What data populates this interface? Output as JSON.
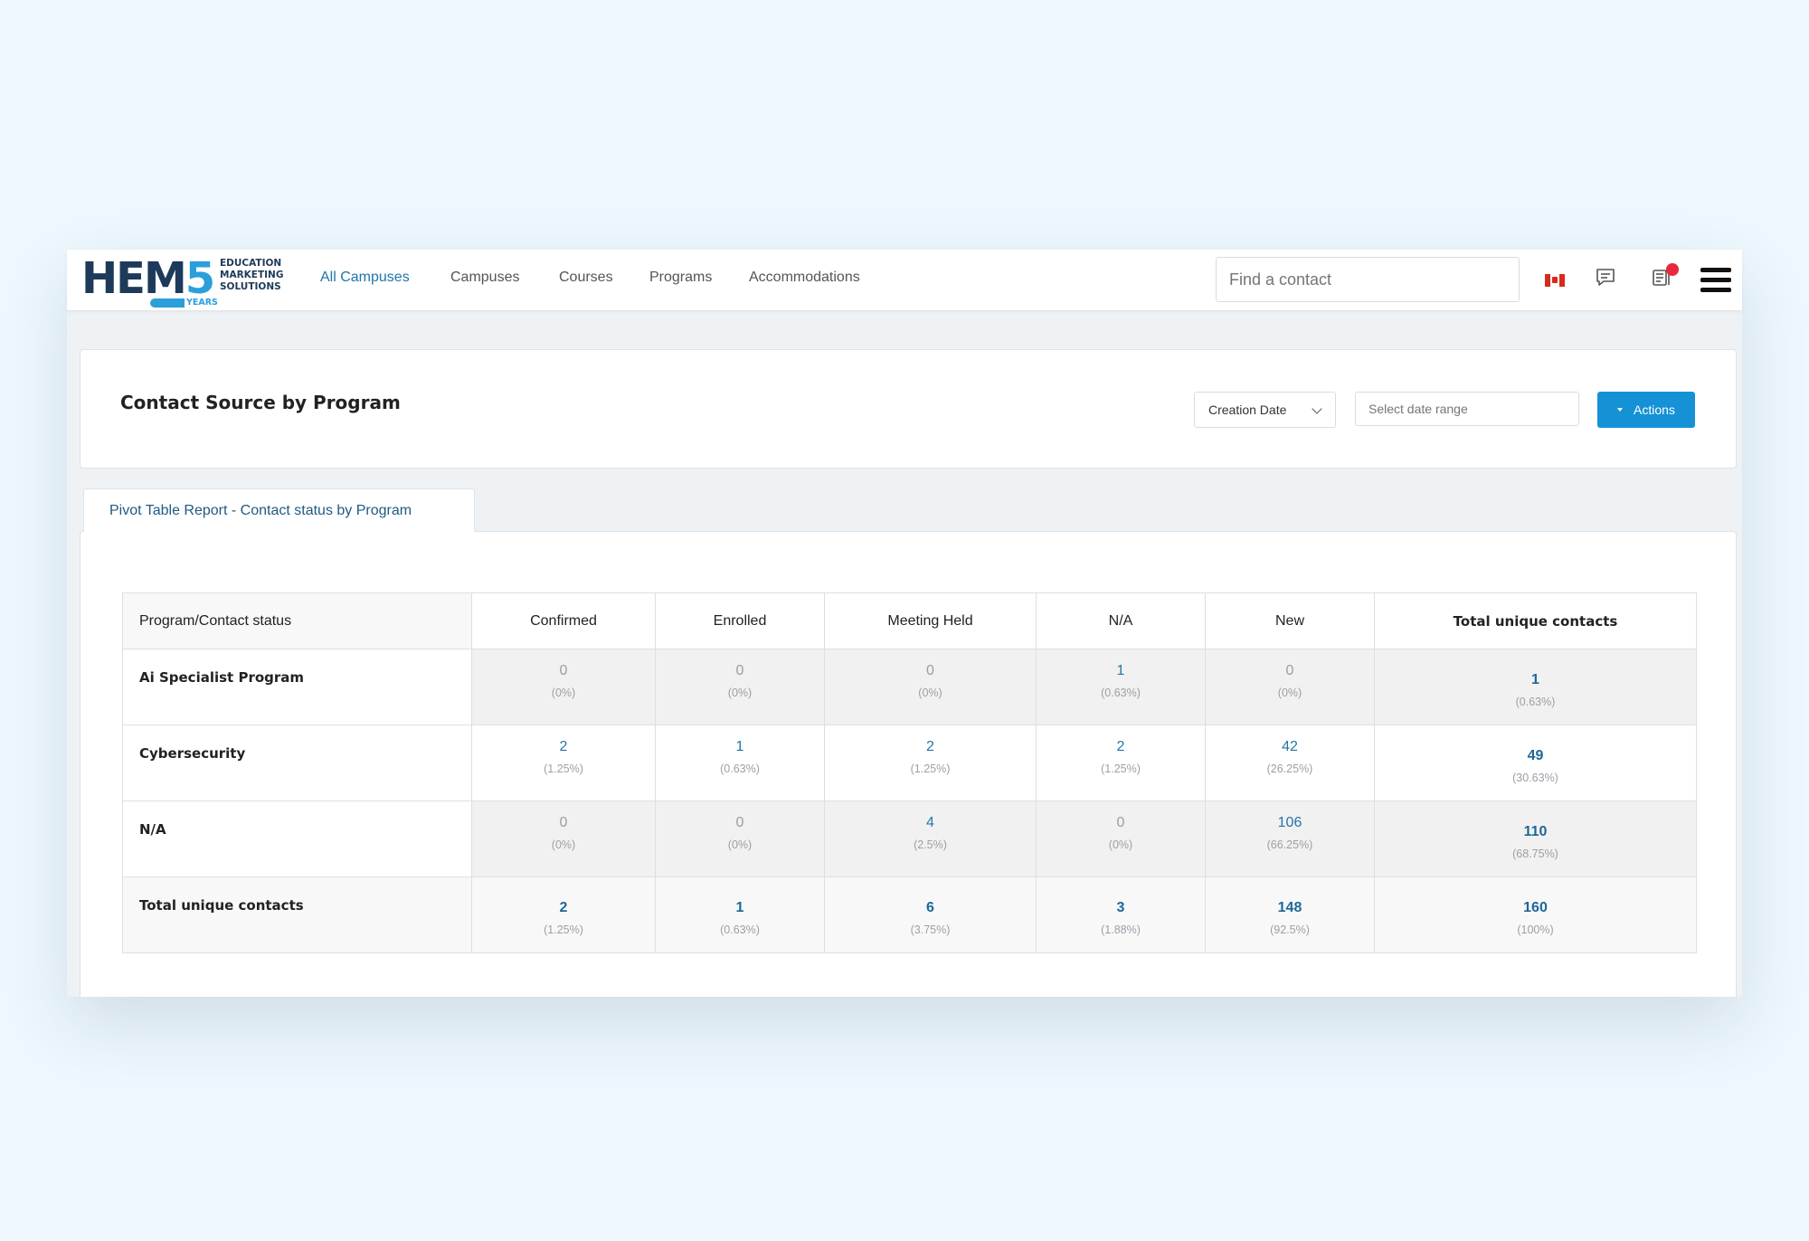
{
  "logo": {
    "main": "HEM",
    "digit": "5",
    "tagline": [
      "EDUCATION",
      "MARKETING",
      "SOLUTIONS"
    ],
    "years": "YEARS"
  },
  "nav": {
    "items": [
      {
        "label": "All Campuses",
        "active": true
      },
      {
        "label": "Campuses",
        "active": false
      },
      {
        "label": "Courses",
        "active": false
      },
      {
        "label": "Programs",
        "active": false
      },
      {
        "label": "Accommodations",
        "active": false
      }
    ],
    "search_placeholder": "Find a contact",
    "icons": [
      "canada-flag-icon",
      "chat-icon",
      "notifications-icon",
      "hamburger-menu-icon"
    ]
  },
  "header": {
    "title": "Contact Source by Program",
    "date_field": "Creation Date",
    "date_range_placeholder": "Select date range",
    "actions_label": "Actions"
  },
  "tab": {
    "label": "Pivot Table Report - Contact status by Program"
  },
  "table": {
    "corner": "Program/Contact status",
    "columns": [
      "Confirmed",
      "Enrolled",
      "Meeting Held",
      "N/A",
      "New",
      "Total unique contacts"
    ],
    "rows": [
      {
        "label": "Ai Specialist Program",
        "cells": [
          [
            "0",
            "(0%)"
          ],
          [
            "0",
            "(0%)"
          ],
          [
            "0",
            "(0%)"
          ],
          [
            "1",
            "(0.63%)"
          ],
          [
            "0",
            "(0%)"
          ]
        ],
        "total": [
          "1",
          "(0.63%)"
        ]
      },
      {
        "label": "Cybersecurity",
        "cells": [
          [
            "2",
            "(1.25%)"
          ],
          [
            "1",
            "(0.63%)"
          ],
          [
            "2",
            "(1.25%)"
          ],
          [
            "2",
            "(1.25%)"
          ],
          [
            "42",
            "(26.25%)"
          ]
        ],
        "total": [
          "49",
          "(30.63%)"
        ]
      },
      {
        "label": "N/A",
        "cells": [
          [
            "0",
            "(0%)"
          ],
          [
            "0",
            "(0%)"
          ],
          [
            "4",
            "(2.5%)"
          ],
          [
            "0",
            "(0%)"
          ],
          [
            "106",
            "(66.25%)"
          ]
        ],
        "total": [
          "110",
          "(68.75%)"
        ]
      }
    ],
    "totals": {
      "label": "Total unique contacts",
      "cells": [
        [
          "2",
          "(1.25%)"
        ],
        [
          "1",
          "(0.63%)"
        ],
        [
          "6",
          "(3.75%)"
        ],
        [
          "3",
          "(1.88%)"
        ],
        [
          "148",
          "(92.5%)"
        ]
      ],
      "total": [
        "160",
        "(100%)"
      ]
    }
  },
  "colors": {
    "accent": "#1592d5",
    "link": "#2376a8",
    "brand_dark": "#1e3a5a",
    "notification": "#e8283c"
  }
}
